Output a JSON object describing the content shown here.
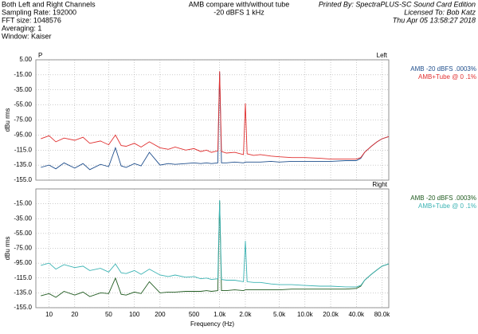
{
  "header": {
    "left": [
      "Both Left and Right Channels",
      "Sampling Rate: 192000",
      "FFT size: 1048576",
      "Averaging: 1",
      "Window: Kaiser"
    ],
    "center": [
      "AMB compare with/without tube",
      "-20 dBFS 1 kHz"
    ],
    "right": [
      "Printed By: SpectraPLUS-SC Sound Card Edition",
      "Licensed To: Bob Katz",
      "Thu Apr 05 13:58:27 2018"
    ]
  },
  "chart_data": [
    {
      "type": "line",
      "log_x": true,
      "grid": true,
      "corner_label": "P",
      "channel": "Left",
      "ylabel": "dBu rms",
      "xtick_labels": false,
      "xlim": [
        7,
        96000
      ],
      "xticks": [
        10,
        20,
        50,
        100,
        200,
        500,
        1000,
        2000,
        5000,
        10000,
        20000,
        40000,
        80000
      ],
      "ylim": [
        -155,
        5
      ],
      "yticks": [
        {
          "value": 5,
          "label": "5.00"
        },
        {
          "value": -15,
          "label": "-15.00"
        },
        {
          "value": -35,
          "label": "-35.00"
        },
        {
          "value": -55,
          "label": "-55.00"
        },
        {
          "value": -75,
          "label": "-75.00"
        },
        {
          "value": -95,
          "label": "-95.00"
        },
        {
          "value": -115,
          "label": "-115.0"
        },
        {
          "value": -135,
          "label": "-135.0"
        },
        {
          "value": -155,
          "label": "-155.0"
        }
      ],
      "x": [
        8,
        10,
        12,
        15,
        20,
        25,
        30,
        40,
        50,
        60,
        70,
        80,
        100,
        120,
        150,
        200,
        250,
        300,
        400,
        500,
        600,
        700,
        800,
        950,
        1000,
        1050,
        1200,
        1500,
        1900,
        2000,
        2100,
        2500,
        3000,
        4000,
        5000,
        7000,
        10000,
        15000,
        20000,
        30000,
        40000,
        45000,
        50000,
        60000,
        70000,
        80000,
        96000
      ],
      "series": [
        {
          "name": "AMB -20 dBFS .0003%",
          "color": "#1f4e8c",
          "values": [
            -138,
            -135,
            -140,
            -132,
            -139,
            -133,
            -141,
            -134,
            -137,
            -112,
            -136,
            -138,
            -133,
            -136,
            -118,
            -135,
            -133,
            -134,
            -133,
            -132,
            -133,
            -132,
            -133,
            -132,
            -11,
            -132,
            -132,
            -131,
            -132,
            -131,
            -131,
            -131,
            -131,
            -130,
            -131,
            -130,
            -130,
            -130,
            -130,
            -129,
            -129,
            -126,
            -118,
            -110,
            -104,
            -100,
            -97
          ]
        },
        {
          "name": "AMB+Tube @ 0 .1%",
          "color": "#e03030",
          "values": [
            -100,
            -96,
            -104,
            -99,
            -102,
            -98,
            -106,
            -103,
            -108,
            -95,
            -109,
            -110,
            -106,
            -111,
            -104,
            -112,
            -114,
            -111,
            -115,
            -113,
            -117,
            -115,
            -118,
            -116,
            -10,
            -117,
            -119,
            -118,
            -121,
            -53,
            -120,
            -122,
            -121,
            -123,
            -124,
            -125,
            -125,
            -126,
            -127,
            -127,
            -127,
            -125,
            -118,
            -110,
            -104,
            -100,
            -97
          ]
        }
      ]
    },
    {
      "type": "line",
      "log_x": true,
      "grid": true,
      "channel": "Right",
      "ylabel": "dBu rms",
      "xlabel": "Frequency (Hz)",
      "xtick_labels": true,
      "xlim": [
        7,
        96000
      ],
      "xticks": [
        10,
        20,
        50,
        100,
        200,
        500,
        {
          "value": 1000,
          "label": "1.0k"
        },
        {
          "value": 2000,
          "label": "2.0k"
        },
        {
          "value": 5000,
          "label": "5.0k"
        },
        {
          "value": 10000,
          "label": "10.0k"
        },
        {
          "value": 20000,
          "label": "20.0k"
        },
        {
          "value": 40000,
          "label": "40.0k"
        },
        {
          "value": 80000,
          "label": "80.0k"
        }
      ],
      "ylim": [
        -155,
        5
      ],
      "yticks": [
        {
          "value": -15,
          "label": "-15.00"
        },
        {
          "value": -35,
          "label": "-35.00"
        },
        {
          "value": -55,
          "label": "-55.00"
        },
        {
          "value": -75,
          "label": "-75.00"
        },
        {
          "value": -95,
          "label": "-95.00"
        },
        {
          "value": -115,
          "label": "-115.0"
        },
        {
          "value": -135,
          "label": "-135.0"
        },
        {
          "value": -155,
          "label": "-155.0"
        }
      ],
      "x": [
        8,
        10,
        12,
        15,
        20,
        25,
        30,
        40,
        50,
        60,
        70,
        80,
        100,
        120,
        150,
        200,
        250,
        300,
        400,
        500,
        600,
        700,
        800,
        950,
        1000,
        1050,
        1200,
        1500,
        1900,
        2000,
        2100,
        2500,
        3000,
        4000,
        5000,
        7000,
        10000,
        15000,
        20000,
        30000,
        40000,
        45000,
        50000,
        60000,
        70000,
        80000,
        96000
      ],
      "series": [
        {
          "name": "AMB -20 dBFS .0003%",
          "color": "#1f5a1f",
          "values": [
            -139,
            -136,
            -141,
            -133,
            -138,
            -134,
            -140,
            -135,
            -136,
            -115,
            -137,
            -138,
            -134,
            -136,
            -120,
            -135,
            -134,
            -134,
            -133,
            -133,
            -133,
            -132,
            -133,
            -132,
            -11,
            -132,
            -132,
            -131,
            -132,
            -131,
            -131,
            -131,
            -131,
            -131,
            -131,
            -130,
            -130,
            -130,
            -130,
            -130,
            -129,
            -126,
            -118,
            -110,
            -104,
            -99,
            -96
          ]
        },
        {
          "name": "AMB+Tube @ 0 .1%",
          "color": "#3bb3b3",
          "values": [
            -98,
            -95,
            -103,
            -97,
            -101,
            -99,
            -105,
            -102,
            -107,
            -96,
            -108,
            -109,
            -105,
            -110,
            -103,
            -111,
            -113,
            -111,
            -114,
            -113,
            -116,
            -115,
            -117,
            -116,
            -10,
            -117,
            -118,
            -118,
            -120,
            -65,
            -120,
            -121,
            -121,
            -123,
            -124,
            -124,
            -125,
            -126,
            -126,
            -127,
            -127,
            -125,
            -118,
            -110,
            -104,
            -99,
            -96
          ]
        }
      ]
    }
  ]
}
